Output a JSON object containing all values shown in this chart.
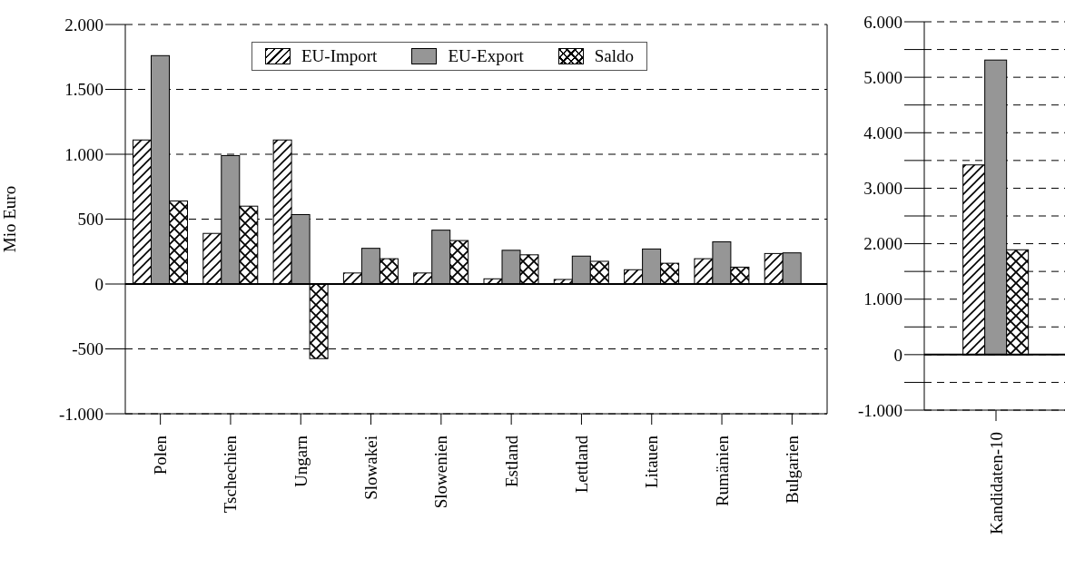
{
  "chart_data": [
    {
      "type": "bar",
      "ylabel": "Mio Euro",
      "categories": [
        "Polen",
        "Tschechien",
        "Ungarn",
        "Slowakei",
        "Slowenien",
        "Estland",
        "Lettland",
        "Litauen",
        "Rumänien",
        "Bulgarien"
      ],
      "series": [
        {
          "name": "EU-Import",
          "color": "#ffffff",
          "values": [
            1110,
            390,
            1110,
            85,
            85,
            40,
            35,
            110,
            195,
            235
          ]
        },
        {
          "name": "EU-Export",
          "color": "#969696",
          "values": [
            1760,
            990,
            535,
            275,
            415,
            260,
            215,
            270,
            325,
            240
          ]
        },
        {
          "name": "Saldo",
          "color": "#ffffff",
          "values": [
            640,
            600,
            -575,
            195,
            335,
            225,
            175,
            160,
            130,
            null
          ]
        }
      ],
      "ylim": [
        -1000,
        2000
      ],
      "yticks": [
        {
          "value": -1000,
          "label": "-1.000"
        },
        {
          "value": -500,
          "label": "-500"
        },
        {
          "value": 0,
          "label": "0"
        },
        {
          "value": 500,
          "label": "500"
        },
        {
          "value": 1000,
          "label": "1.000"
        },
        {
          "value": 1500,
          "label": "1.500"
        },
        {
          "value": 2000,
          "label": "2.000"
        }
      ],
      "grid": "y",
      "legend": "top"
    },
    {
      "type": "bar",
      "categories": [
        "Kandidaten-10"
      ],
      "series": [
        {
          "color": "#ffffff",
          "values": [
            3420
          ]
        },
        {
          "color": "#969696",
          "values": [
            5310
          ]
        },
        {
          "color": "#ffffff",
          "values": [
            1890
          ]
        }
      ],
      "ylim": [
        -1000,
        6000
      ],
      "yticks": [
        {
          "value": -1000,
          "label": "-1.000"
        },
        {
          "value": -500,
          "label": null
        },
        {
          "value": 0,
          "label": "0"
        },
        {
          "value": 500,
          "label": null
        },
        {
          "value": 1000,
          "label": "1.000"
        },
        {
          "value": 1500,
          "label": null
        },
        {
          "value": 2000,
          "label": "2.000"
        },
        {
          "value": 2500,
          "label": null
        },
        {
          "value": 3000,
          "label": "3.000"
        },
        {
          "value": 3500,
          "label": null
        },
        {
          "value": 4000,
          "label": "4.000"
        },
        {
          "value": 4500,
          "label": null
        },
        {
          "value": 5000,
          "label": "5.000"
        },
        {
          "value": 5500,
          "label": null
        },
        {
          "value": 6000,
          "label": "6.000"
        }
      ],
      "grid": "y"
    }
  ]
}
